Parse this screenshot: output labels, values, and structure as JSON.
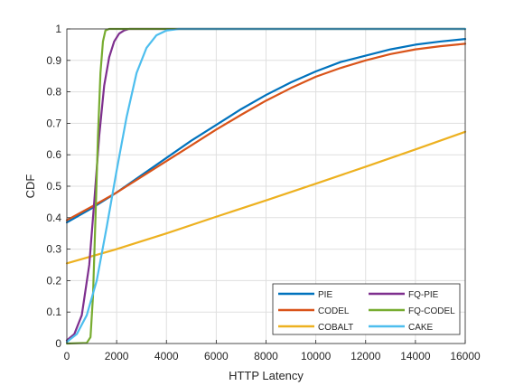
{
  "chart_data": {
    "type": "line",
    "title": "",
    "xlabel": "HTTP Latency",
    "ylabel": "CDF",
    "xlim": [
      0,
      16000
    ],
    "ylim": [
      0,
      1
    ],
    "xticks": [
      "0",
      "2000",
      "4000",
      "6000",
      "8000",
      "10000",
      "12000",
      "14000",
      "16000"
    ],
    "yticks": [
      "0",
      "0.1",
      "0.2",
      "0.3",
      "0.4",
      "0.5",
      "0.6",
      "0.7",
      "0.8",
      "0.9",
      "1"
    ],
    "grid": true,
    "legend_position": "bottom-right",
    "series": [
      {
        "name": "PIE",
        "color": "#0072BD",
        "x": [
          0,
          1000,
          2000,
          3000,
          4000,
          5000,
          6000,
          7000,
          8000,
          9000,
          10000,
          11000,
          12000,
          13000,
          14000,
          15000,
          16000
        ],
        "y": [
          0.385,
          0.43,
          0.48,
          0.535,
          0.59,
          0.645,
          0.695,
          0.745,
          0.79,
          0.83,
          0.865,
          0.895,
          0.915,
          0.935,
          0.95,
          0.96,
          0.968
        ]
      },
      {
        "name": "CODEL",
        "color": "#D95319",
        "x": [
          0,
          1000,
          2000,
          3000,
          4000,
          5000,
          6000,
          7000,
          8000,
          9000,
          10000,
          11000,
          12000,
          13000,
          14000,
          15000,
          16000
        ],
        "y": [
          0.392,
          0.435,
          0.48,
          0.53,
          0.58,
          0.63,
          0.68,
          0.727,
          0.772,
          0.812,
          0.848,
          0.876,
          0.9,
          0.92,
          0.935,
          0.945,
          0.953
        ]
      },
      {
        "name": "COBALT",
        "color": "#EDB120",
        "x": [
          0,
          2000,
          4000,
          6000,
          8000,
          10000,
          12000,
          14000,
          16000
        ],
        "y": [
          0.255,
          0.3,
          0.35,
          0.403,
          0.455,
          0.508,
          0.562,
          0.617,
          0.673
        ]
      },
      {
        "name": "FQ-PIE",
        "color": "#7E2F8E",
        "x": [
          0,
          300,
          600,
          900,
          1100,
          1300,
          1500,
          1700,
          1900,
          2100,
          2300,
          2500,
          2800,
          16000
        ],
        "y": [
          0.01,
          0.03,
          0.09,
          0.25,
          0.45,
          0.66,
          0.82,
          0.91,
          0.96,
          0.985,
          0.995,
          1.0,
          1.0,
          1.0
        ]
      },
      {
        "name": "FQ-CODEL",
        "color": "#77AC30",
        "x": [
          0,
          800,
          950,
          1050,
          1150,
          1250,
          1350,
          1450,
          1550,
          1700,
          2000,
          16000
        ],
        "y": [
          0.0,
          0.002,
          0.02,
          0.15,
          0.4,
          0.66,
          0.86,
          0.96,
          0.995,
          1.0,
          1.0,
          1.0
        ]
      },
      {
        "name": "CAKE",
        "color": "#4DBEEE",
        "x": [
          0,
          400,
          800,
          1200,
          1600,
          2000,
          2400,
          2800,
          3200,
          3600,
          4000,
          4500,
          16000
        ],
        "y": [
          0.005,
          0.03,
          0.09,
          0.2,
          0.37,
          0.55,
          0.72,
          0.86,
          0.94,
          0.98,
          0.995,
          1.0,
          1.0
        ]
      }
    ]
  }
}
